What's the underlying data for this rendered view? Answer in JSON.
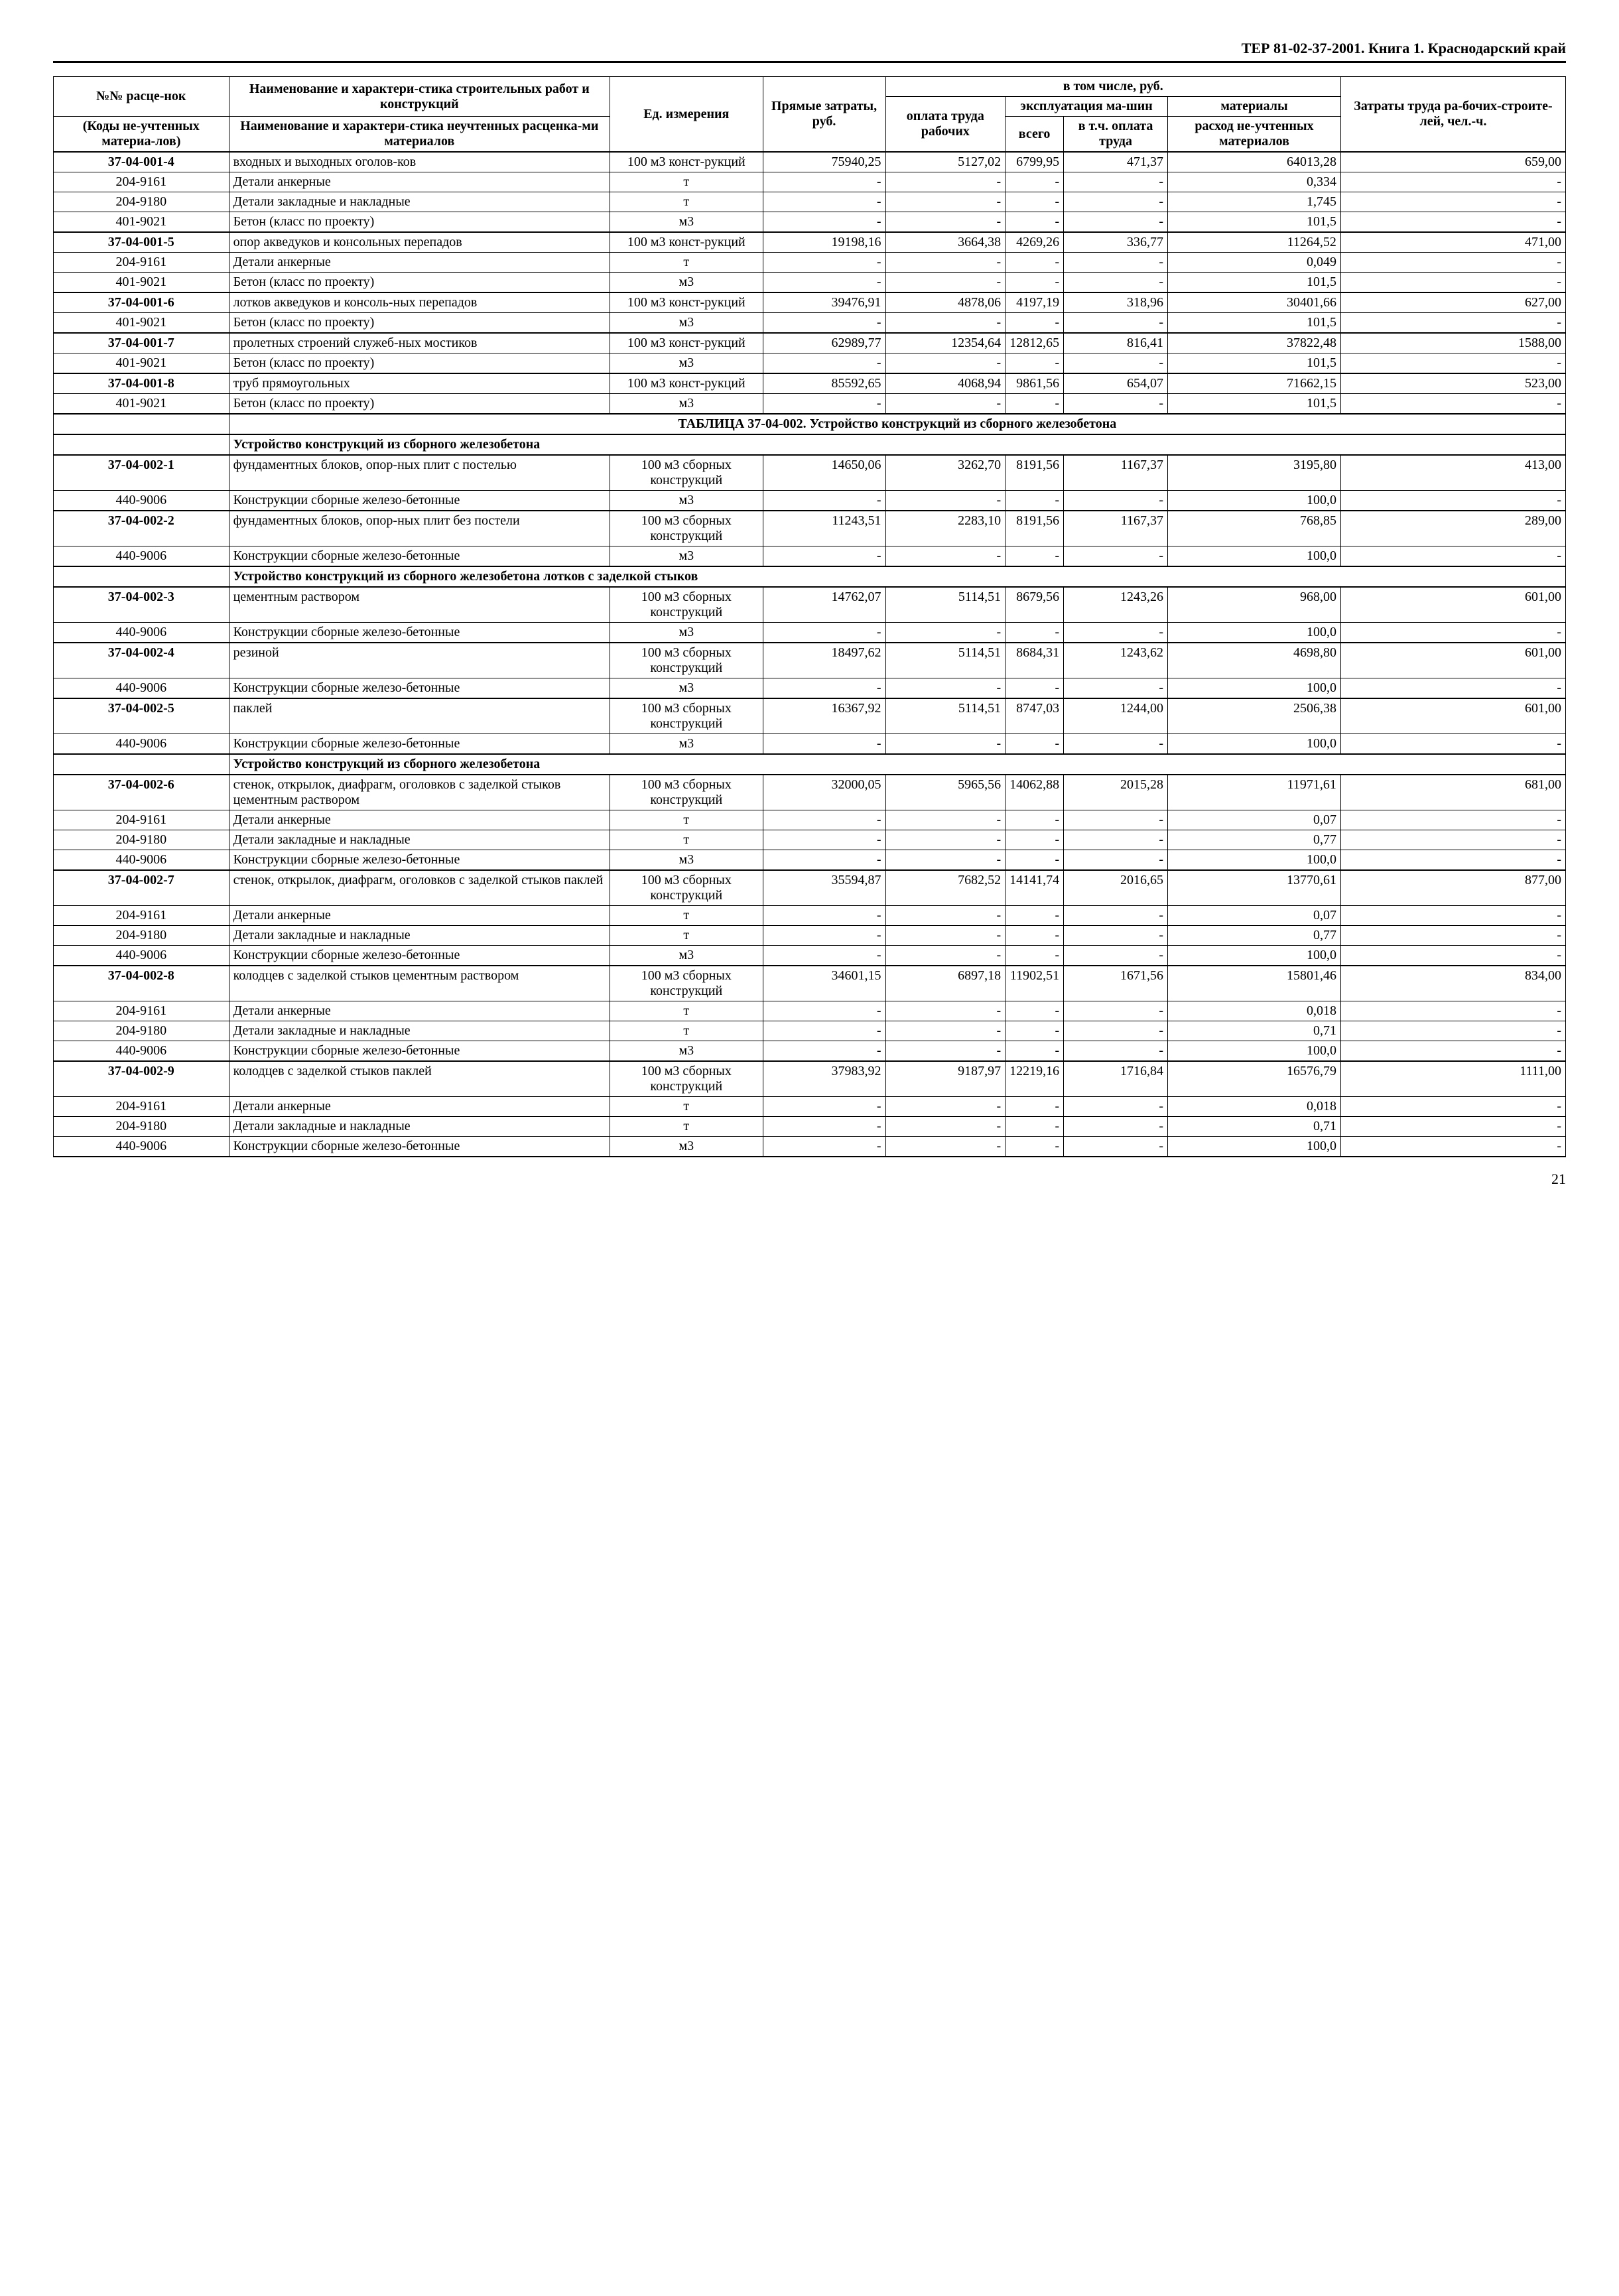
{
  "header_text": "ТЕР 81-02-37-2001. Книга 1.  Краснодарский край",
  "page_number": "21",
  "columns": {
    "col1a": "№№ расце-нок",
    "col1b": "(Коды не-учтенных материа-лов)",
    "col2a": "Наименование и характери-стика строительных работ и конструкций",
    "col2b": "Наименование и характери-стика неучтенных расценка-ми материалов",
    "col3": "Ед. измерения",
    "col4": "Прямые затраты, руб.",
    "group5": "в том числе, руб.",
    "col5": "оплата труда рабочих",
    "group6": "эксплуатация ма-шин",
    "col6a": "всего",
    "col6b": "в т.ч. оплата труда",
    "group7": "материалы",
    "col7": "расход не-учтенных материалов",
    "col8": "Затраты труда ра-бочих-строите-лей, чел.-ч."
  },
  "table_title_1": "ТАБЛИЦА 37-04-002. Устройство конструкций из сборного железобетона",
  "section_1": "Устройство конструкций из сборного железобетона",
  "section_2": "Устройство конструкций из сборного железобетона лотков с заделкой стыков",
  "section_3": "Устройство конструкций из сборного железобетона",
  "rows": [
    {
      "code": "37-04-001-4",
      "name": "входных и выходных оголов-ков",
      "unit": "100 м3 конст-рукций",
      "c4": "75940,25",
      "c5": "5127,02",
      "c6": "6799,95",
      "c6b": "471,37",
      "c7": "64013,28",
      "c8": "659,00"
    },
    {
      "code": "204-9161",
      "name": "Детали анкерные",
      "unit": "т",
      "c4": "-",
      "c5": "-",
      "c6": "-",
      "c6b": "-",
      "c7": "0,334",
      "c8": "-",
      "sub": true
    },
    {
      "code": "204-9180",
      "name": "Детали закладные и накладные",
      "unit": "т",
      "c4": "-",
      "c5": "-",
      "c6": "-",
      "c6b": "-",
      "c7": "1,745",
      "c8": "-",
      "sub": true
    },
    {
      "code": "401-9021",
      "name": "Бетон (класс по проекту)",
      "unit": "м3",
      "c4": "-",
      "c5": "-",
      "c6": "-",
      "c6b": "-",
      "c7": "101,5",
      "c8": "-",
      "sub": true,
      "end": true
    },
    {
      "code": "37-04-001-5",
      "name": "опор акведуков и консольных перепадов",
      "unit": "100 м3 конст-рукций",
      "c4": "19198,16",
      "c5": "3664,38",
      "c6": "4269,26",
      "c6b": "336,77",
      "c7": "11264,52",
      "c8": "471,00"
    },
    {
      "code": "204-9161",
      "name": "Детали анкерные",
      "unit": "т",
      "c4": "-",
      "c5": "-",
      "c6": "-",
      "c6b": "-",
      "c7": "0,049",
      "c8": "-",
      "sub": true
    },
    {
      "code": "401-9021",
      "name": "Бетон (класс по проекту)",
      "unit": "м3",
      "c4": "-",
      "c5": "-",
      "c6": "-",
      "c6b": "-",
      "c7": "101,5",
      "c8": "-",
      "sub": true,
      "end": true
    },
    {
      "code": "37-04-001-6",
      "name": "лотков акведуков и консоль-ных перепадов",
      "unit": "100 м3 конст-рукций",
      "c4": "39476,91",
      "c5": "4878,06",
      "c6": "4197,19",
      "c6b": "318,96",
      "c7": "30401,66",
      "c8": "627,00"
    },
    {
      "code": "401-9021",
      "name": "Бетон (класс по проекту)",
      "unit": "м3",
      "c4": "-",
      "c5": "-",
      "c6": "-",
      "c6b": "-",
      "c7": "101,5",
      "c8": "-",
      "sub": true,
      "end": true
    },
    {
      "code": "37-04-001-7",
      "name": "пролетных строений служеб-ных мостиков",
      "unit": "100 м3 конст-рукций",
      "c4": "62989,77",
      "c5": "12354,64",
      "c6": "12812,65",
      "c6b": "816,41",
      "c7": "37822,48",
      "c8": "1588,00"
    },
    {
      "code": "401-9021",
      "name": "Бетон (класс по проекту)",
      "unit": "м3",
      "c4": "-",
      "c5": "-",
      "c6": "-",
      "c6b": "-",
      "c7": "101,5",
      "c8": "-",
      "sub": true,
      "end": true
    },
    {
      "code": "37-04-001-8",
      "name": "труб прямоугольных",
      "unit": "100 м3 конст-рукций",
      "c4": "85592,65",
      "c5": "4068,94",
      "c6": "9861,56",
      "c6b": "654,07",
      "c7": "71662,15",
      "c8": "523,00"
    },
    {
      "code": "401-9021",
      "name": "Бетон (класс по проекту)",
      "unit": "м3",
      "c4": "-",
      "c5": "-",
      "c6": "-",
      "c6b": "-",
      "c7": "101,5",
      "c8": "-",
      "sub": true,
      "end": true
    }
  ],
  "rows2": [
    {
      "code": "37-04-002-1",
      "name": "фундаментных блоков, опор-ных плит с постелью",
      "unit": "100 м3 сборных конструкций",
      "c4": "14650,06",
      "c5": "3262,70",
      "c6": "8191,56",
      "c6b": "1167,37",
      "c7": "3195,80",
      "c8": "413,00"
    },
    {
      "code": "440-9006",
      "name": "Конструкции сборные железо-бетонные",
      "unit": "м3",
      "c4": "-",
      "c5": "-",
      "c6": "-",
      "c6b": "-",
      "c7": "100,0",
      "c8": "-",
      "sub": true,
      "end": true
    },
    {
      "code": "37-04-002-2",
      "name": "фундаментных блоков, опор-ных плит без постели",
      "unit": "100 м3 сборных конструкций",
      "c4": "11243,51",
      "c5": "2283,10",
      "c6": "8191,56",
      "c6b": "1167,37",
      "c7": "768,85",
      "c8": "289,00"
    },
    {
      "code": "440-9006",
      "name": "Конструкции сборные железо-бетонные",
      "unit": "м3",
      "c4": "-",
      "c5": "-",
      "c6": "-",
      "c6b": "-",
      "c7": "100,0",
      "c8": "-",
      "sub": true,
      "end": true
    }
  ],
  "rows3": [
    {
      "code": "37-04-002-3",
      "name": "цементным раствором",
      "unit": "100 м3 сборных конструкций",
      "c4": "14762,07",
      "c5": "5114,51",
      "c6": "8679,56",
      "c6b": "1243,26",
      "c7": "968,00",
      "c8": "601,00"
    },
    {
      "code": "440-9006",
      "name": "Конструкции сборные железо-бетонные",
      "unit": "м3",
      "c4": "-",
      "c5": "-",
      "c6": "-",
      "c6b": "-",
      "c7": "100,0",
      "c8": "-",
      "sub": true,
      "end": true
    },
    {
      "code": "37-04-002-4",
      "name": "резиной",
      "unit": "100 м3 сборных конструкций",
      "c4": "18497,62",
      "c5": "5114,51",
      "c6": "8684,31",
      "c6b": "1243,62",
      "c7": "4698,80",
      "c8": "601,00"
    },
    {
      "code": "440-9006",
      "name": "Конструкции сборные железо-бетонные",
      "unit": "м3",
      "c4": "-",
      "c5": "-",
      "c6": "-",
      "c6b": "-",
      "c7": "100,0",
      "c8": "-",
      "sub": true,
      "end": true
    },
    {
      "code": "37-04-002-5",
      "name": "паклей",
      "unit": "100 м3 сборных конструкций",
      "c4": "16367,92",
      "c5": "5114,51",
      "c6": "8747,03",
      "c6b": "1244,00",
      "c7": "2506,38",
      "c8": "601,00"
    },
    {
      "code": "440-9006",
      "name": "Конструкции сборные железо-бетонные",
      "unit": "м3",
      "c4": "-",
      "c5": "-",
      "c6": "-",
      "c6b": "-",
      "c7": "100,0",
      "c8": "-",
      "sub": true,
      "end": true
    }
  ],
  "rows4": [
    {
      "code": "37-04-002-6",
      "name": "стенок, открылок, диафрагм, оголовков с заделкой стыков цементным раствором",
      "unit": "100 м3 сборных конструкций",
      "c4": "32000,05",
      "c5": "5965,56",
      "c6": "14062,88",
      "c6b": "2015,28",
      "c7": "11971,61",
      "c8": "681,00"
    },
    {
      "code": "204-9161",
      "name": "Детали анкерные",
      "unit": "т",
      "c4": "-",
      "c5": "-",
      "c6": "-",
      "c6b": "-",
      "c7": "0,07",
      "c8": "-",
      "sub": true
    },
    {
      "code": "204-9180",
      "name": "Детали закладные и накладные",
      "unit": "т",
      "c4": "-",
      "c5": "-",
      "c6": "-",
      "c6b": "-",
      "c7": "0,77",
      "c8": "-",
      "sub": true
    },
    {
      "code": "440-9006",
      "name": "Конструкции сборные железо-бетонные",
      "unit": "м3",
      "c4": "-",
      "c5": "-",
      "c6": "-",
      "c6b": "-",
      "c7": "100,0",
      "c8": "-",
      "sub": true,
      "end": true
    },
    {
      "code": "37-04-002-7",
      "name": "стенок, открылок, диафрагм, оголовков с заделкой стыков паклей",
      "unit": "100 м3 сборных конструкций",
      "c4": "35594,87",
      "c5": "7682,52",
      "c6": "14141,74",
      "c6b": "2016,65",
      "c7": "13770,61",
      "c8": "877,00"
    },
    {
      "code": "204-9161",
      "name": "Детали анкерные",
      "unit": "т",
      "c4": "-",
      "c5": "-",
      "c6": "-",
      "c6b": "-",
      "c7": "0,07",
      "c8": "-",
      "sub": true
    },
    {
      "code": "204-9180",
      "name": "Детали закладные и накладные",
      "unit": "т",
      "c4": "-",
      "c5": "-",
      "c6": "-",
      "c6b": "-",
      "c7": "0,77",
      "c8": "-",
      "sub": true
    },
    {
      "code": "440-9006",
      "name": "Конструкции сборные железо-бетонные",
      "unit": "м3",
      "c4": "-",
      "c5": "-",
      "c6": "-",
      "c6b": "-",
      "c7": "100,0",
      "c8": "-",
      "sub": true,
      "end": true
    },
    {
      "code": "37-04-002-8",
      "name": "колодцев с заделкой стыков цементным раствором",
      "unit": "100 м3 сборных конструкций",
      "c4": "34601,15",
      "c5": "6897,18",
      "c6": "11902,51",
      "c6b": "1671,56",
      "c7": "15801,46",
      "c8": "834,00"
    },
    {
      "code": "204-9161",
      "name": "Детали анкерные",
      "unit": "т",
      "c4": "-",
      "c5": "-",
      "c6": "-",
      "c6b": "-",
      "c7": "0,018",
      "c8": "-",
      "sub": true
    },
    {
      "code": "204-9180",
      "name": "Детали закладные и накладные",
      "unit": "т",
      "c4": "-",
      "c5": "-",
      "c6": "-",
      "c6b": "-",
      "c7": "0,71",
      "c8": "-",
      "sub": true
    },
    {
      "code": "440-9006",
      "name": "Конструкции сборные железо-бетонные",
      "unit": "м3",
      "c4": "-",
      "c5": "-",
      "c6": "-",
      "c6b": "-",
      "c7": "100,0",
      "c8": "-",
      "sub": true,
      "end": true
    },
    {
      "code": "37-04-002-9",
      "name": "колодцев с заделкой стыков паклей",
      "unit": "100 м3 сборных конструкций",
      "c4": "37983,92",
      "c5": "9187,97",
      "c6": "12219,16",
      "c6b": "1716,84",
      "c7": "16576,79",
      "c8": "1111,00"
    },
    {
      "code": "204-9161",
      "name": "Детали анкерные",
      "unit": "т",
      "c4": "-",
      "c5": "-",
      "c6": "-",
      "c6b": "-",
      "c7": "0,018",
      "c8": "-",
      "sub": true
    },
    {
      "code": "204-9180",
      "name": "Детали закладные и накладные",
      "unit": "т",
      "c4": "-",
      "c5": "-",
      "c6": "-",
      "c6b": "-",
      "c7": "0,71",
      "c8": "-",
      "sub": true
    },
    {
      "code": "440-9006",
      "name": "Конструкции сборные железо-бетонные",
      "unit": "м3",
      "c4": "-",
      "c5": "-",
      "c6": "-",
      "c6b": "-",
      "c7": "100,0",
      "c8": "-",
      "sub": true,
      "end": true
    }
  ]
}
